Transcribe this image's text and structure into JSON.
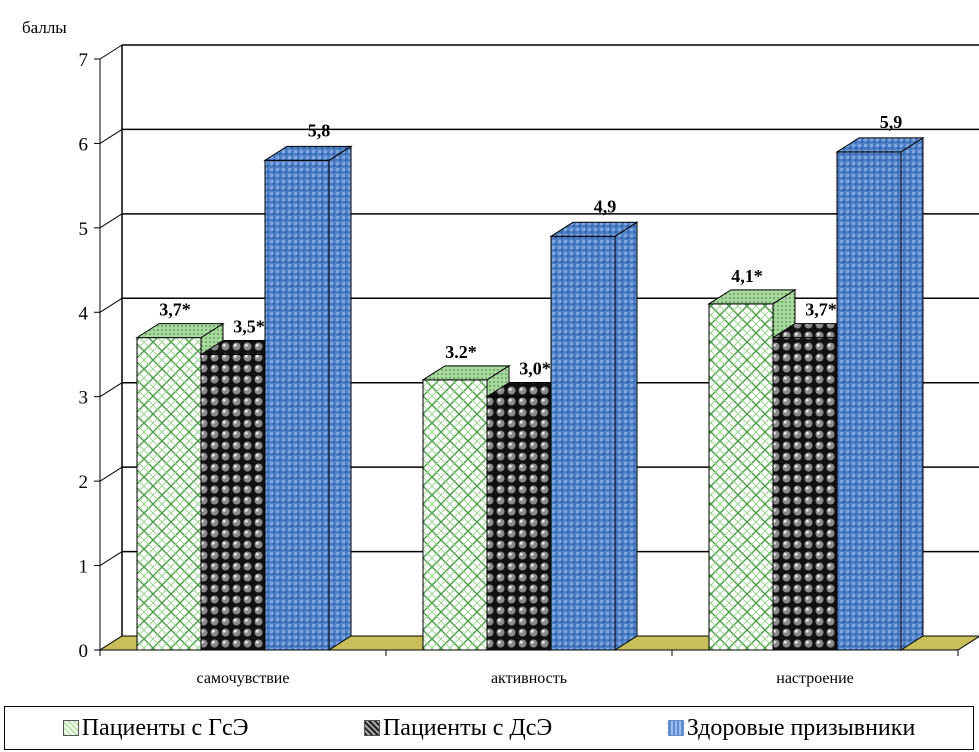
{
  "chart_data": {
    "type": "bar",
    "ylabel": "баллы",
    "ylim": [
      0,
      7
    ],
    "yticks": [
      0,
      1,
      2,
      3,
      4,
      5,
      6,
      7
    ],
    "categories": [
      "самочувствие",
      "активность",
      "настроение"
    ],
    "series": [
      {
        "name": "Пациенты с ГсЭ",
        "values": [
          3.7,
          3.2,
          4.1
        ],
        "labels": [
          "3,7*",
          "3.2*",
          "4,1*"
        ],
        "color": "#c8ecb8"
      },
      {
        "name": "Пациенты с ДсЭ",
        "values": [
          3.5,
          3.0,
          3.7
        ],
        "labels": [
          "3,5*",
          "3,0*",
          "3,7*"
        ],
        "color": "#1a1a1a"
      },
      {
        "name": "Здоровые призывники",
        "values": [
          5.8,
          4.9,
          5.9
        ],
        "labels": [
          "5,8",
          "4,9",
          "5,9"
        ],
        "color": "#4f7fc4"
      }
    ],
    "grid": true,
    "legend_position": "bottom"
  },
  "colors": {
    "floor": "#c9bf5a",
    "axis": "#000000"
  }
}
